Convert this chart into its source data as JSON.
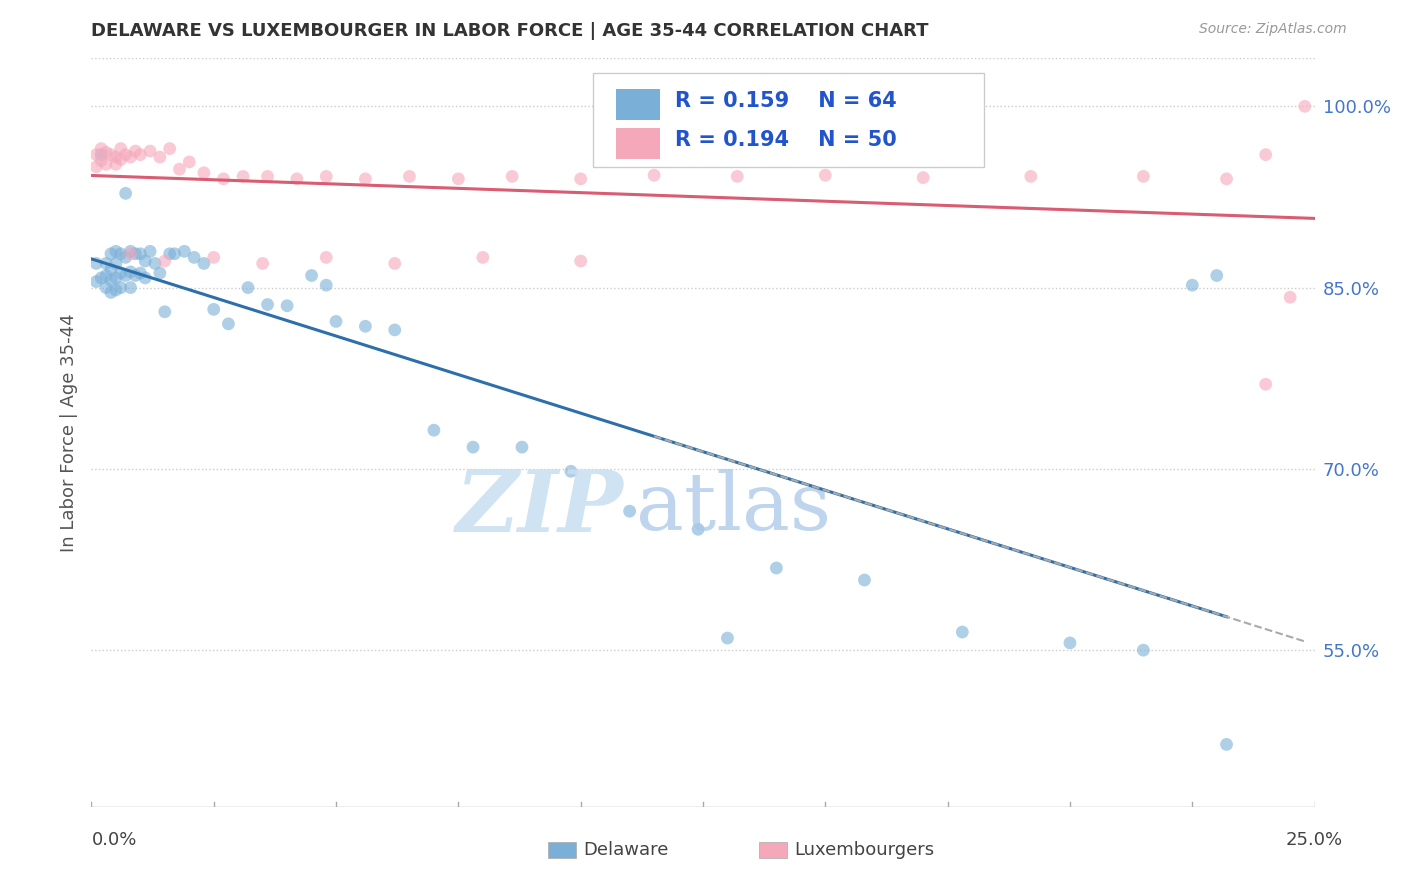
{
  "title": "DELAWARE VS LUXEMBOURGER IN LABOR FORCE | AGE 35-44 CORRELATION CHART",
  "source": "Source: ZipAtlas.com",
  "ylabel": "In Labor Force | Age 35-44",
  "ytick_labels": [
    "55.0%",
    "70.0%",
    "85.0%",
    "100.0%"
  ],
  "ytick_values": [
    0.55,
    0.7,
    0.85,
    1.0
  ],
  "xtick_left": "0.0%",
  "xtick_right": "25.0%",
  "xlim": [
    0.0,
    0.25
  ],
  "ylim": [
    0.42,
    1.04
  ],
  "legend_blue_R": "R = 0.159",
  "legend_blue_N": "N = 64",
  "legend_pink_R": "R = 0.194",
  "legend_pink_N": "N = 50",
  "legend_label_blue": "Delaware",
  "legend_label_pink": "Luxembourgers",
  "blue_color": "#7ab0d8",
  "pink_color": "#f5a8ba",
  "blue_line_color": "#2d6faa",
  "pink_line_color": "#d95c72",
  "scatter_alpha": 0.6,
  "marker_size": 85,
  "background_color": "#ffffff",
  "grid_color": "#cccccc",
  "title_color": "#333333",
  "ytick_color": "#4477cc",
  "xtick_color": "#444444",
  "legend_text_color": "#2255cc",
  "source_color": "#999999",
  "watermark_zip_color": "#c8dff0",
  "watermark_atlas_color": "#a8c8e8",
  "blue_x": [
    0.001,
    0.001,
    0.002,
    0.002,
    0.003,
    0.003,
    0.003,
    0.004,
    0.004,
    0.004,
    0.004,
    0.005,
    0.005,
    0.005,
    0.005,
    0.006,
    0.006,
    0.006,
    0.007,
    0.007,
    0.007,
    0.008,
    0.008,
    0.008,
    0.009,
    0.009,
    0.01,
    0.01,
    0.011,
    0.011,
    0.012,
    0.013,
    0.014,
    0.015,
    0.016,
    0.017,
    0.019,
    0.021,
    0.023,
    0.025,
    0.028,
    0.032,
    0.036,
    0.04,
    0.045,
    0.05,
    0.056,
    0.062,
    0.07,
    0.078,
    0.088,
    0.098,
    0.11,
    0.124,
    0.14,
    0.158,
    0.178,
    0.2,
    0.215,
    0.225,
    0.23,
    0.232,
    0.048,
    0.13
  ],
  "blue_y": [
    0.87,
    0.855,
    0.96,
    0.858,
    0.87,
    0.86,
    0.85,
    0.878,
    0.865,
    0.856,
    0.846,
    0.88,
    0.87,
    0.858,
    0.848,
    0.878,
    0.862,
    0.85,
    0.928,
    0.875,
    0.86,
    0.88,
    0.863,
    0.85,
    0.878,
    0.86,
    0.878,
    0.862,
    0.872,
    0.858,
    0.88,
    0.87,
    0.862,
    0.83,
    0.878,
    0.878,
    0.88,
    0.875,
    0.87,
    0.832,
    0.82,
    0.85,
    0.836,
    0.835,
    0.86,
    0.822,
    0.818,
    0.815,
    0.732,
    0.718,
    0.718,
    0.698,
    0.665,
    0.65,
    0.618,
    0.608,
    0.565,
    0.556,
    0.55,
    0.852,
    0.86,
    0.472,
    0.852,
    0.56
  ],
  "pink_x": [
    0.001,
    0.001,
    0.002,
    0.002,
    0.003,
    0.003,
    0.004,
    0.005,
    0.005,
    0.006,
    0.006,
    0.007,
    0.008,
    0.009,
    0.01,
    0.012,
    0.014,
    0.016,
    0.018,
    0.02,
    0.023,
    0.027,
    0.031,
    0.036,
    0.042,
    0.048,
    0.056,
    0.065,
    0.075,
    0.086,
    0.1,
    0.115,
    0.132,
    0.15,
    0.17,
    0.192,
    0.215,
    0.232,
    0.24,
    0.245,
    0.008,
    0.015,
    0.025,
    0.035,
    0.048,
    0.062,
    0.08,
    0.1,
    0.24,
    0.248
  ],
  "pink_y": [
    0.96,
    0.95,
    0.965,
    0.955,
    0.962,
    0.952,
    0.96,
    0.958,
    0.952,
    0.965,
    0.956,
    0.96,
    0.958,
    0.963,
    0.96,
    0.963,
    0.958,
    0.965,
    0.948,
    0.954,
    0.945,
    0.94,
    0.942,
    0.942,
    0.94,
    0.942,
    0.94,
    0.942,
    0.94,
    0.942,
    0.94,
    0.943,
    0.942,
    0.943,
    0.941,
    0.942,
    0.942,
    0.94,
    0.96,
    0.842,
    0.878,
    0.872,
    0.875,
    0.87,
    0.875,
    0.87,
    0.875,
    0.872,
    0.77,
    1.0
  ]
}
